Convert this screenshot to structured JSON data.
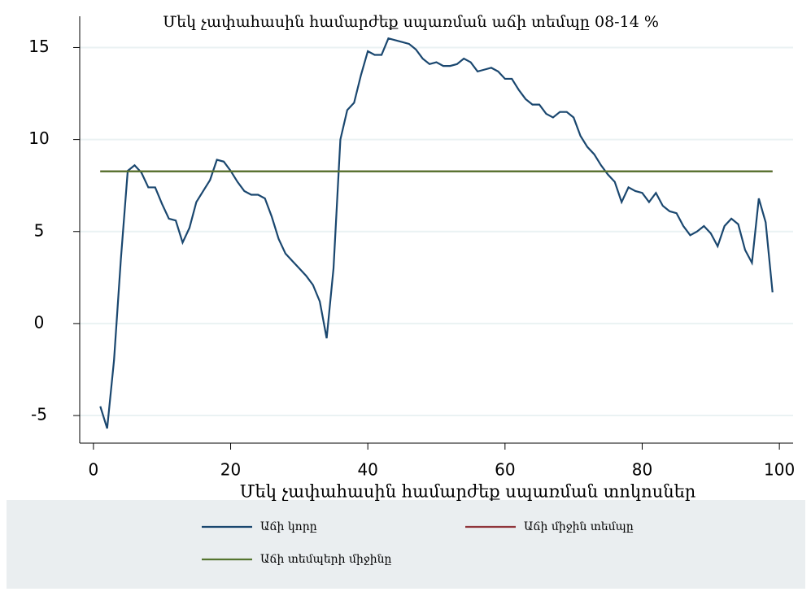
{
  "chart_data": {
    "type": "line",
    "title": "Մեկ չափահասին համարժեք սպառման աճի տեմպը  08-14 %",
    "x_label": "Մեկ չափահասին համարժեք սպառման տոկոսներ",
    "xlim": [
      -2,
      102
    ],
    "xticks": [
      0,
      20,
      40,
      60,
      80,
      100
    ],
    "ylim": [
      -6.5,
      16.7
    ],
    "yticks": [
      -5,
      0,
      5,
      10,
      15
    ],
    "grid": true,
    "legend": "bottom",
    "series": [
      {
        "name": "Աճի կորը",
        "color": "#1a476f",
        "x": [
          1,
          2,
          3,
          4,
          5,
          6,
          7,
          8,
          9,
          10,
          11,
          12,
          13,
          14,
          15,
          16,
          17,
          18,
          19,
          20,
          21,
          22,
          23,
          24,
          25,
          26,
          27,
          28,
          29,
          30,
          31,
          32,
          33,
          34,
          35,
          36,
          37,
          38,
          39,
          40,
          41,
          42,
          43,
          44,
          45,
          46,
          47,
          48,
          49,
          50,
          51,
          52,
          53,
          54,
          55,
          56,
          57,
          58,
          59,
          60,
          61,
          62,
          63,
          64,
          65,
          66,
          67,
          68,
          69,
          70,
          71,
          72,
          73,
          74,
          75,
          76,
          77,
          78,
          79,
          80,
          81,
          82,
          83,
          84,
          85,
          86,
          87,
          88,
          89,
          90,
          91,
          92,
          93,
          94,
          95,
          96,
          97,
          98,
          99
        ],
        "values": [
          -4.5,
          -5.7,
          -2,
          3.5,
          8.3,
          8.6,
          8.2,
          7.4,
          7.4,
          6.5,
          5.7,
          5.6,
          4.4,
          5.2,
          6.6,
          7.2,
          7.8,
          8.9,
          8.8,
          8.3,
          7.7,
          7.2,
          7.0,
          7.0,
          6.8,
          5.8,
          4.6,
          3.8,
          3.4,
          3.0,
          2.6,
          2.1,
          1.2,
          -0.8,
          3.0,
          10.0,
          11.6,
          12.0,
          13.5,
          14.8,
          14.6,
          14.6,
          15.5,
          15.4,
          15.3,
          15.2,
          14.9,
          14.4,
          14.1,
          14.2,
          14.0,
          14.0,
          14.1,
          14.4,
          14.2,
          13.7,
          13.8,
          13.9,
          13.7,
          13.3,
          13.3,
          12.7,
          12.2,
          11.9,
          11.9,
          11.4,
          11.2,
          11.5,
          11.5,
          11.2,
          10.2,
          9.6,
          9.2,
          8.6,
          8.1,
          7.7,
          6.6,
          7.4,
          7.2,
          7.1,
          6.6,
          7.1,
          6.4,
          6.1,
          6.0,
          5.3,
          4.8,
          5.0,
          5.3,
          4.9,
          4.2,
          5.3,
          5.7,
          5.4,
          4.0,
          3.3,
          6.8,
          5.5,
          1.7
        ]
      },
      {
        "name": "Աճի միջին տեմպը",
        "color": "#90353b",
        "x": [
          1,
          99
        ],
        "values": [
          8.27,
          8.27
        ]
      },
      {
        "name": "Աճի տեմպերի միջինը",
        "color": "#55752f",
        "x": [
          1,
          99
        ],
        "values": [
          8.27,
          8.27
        ]
      }
    ]
  }
}
